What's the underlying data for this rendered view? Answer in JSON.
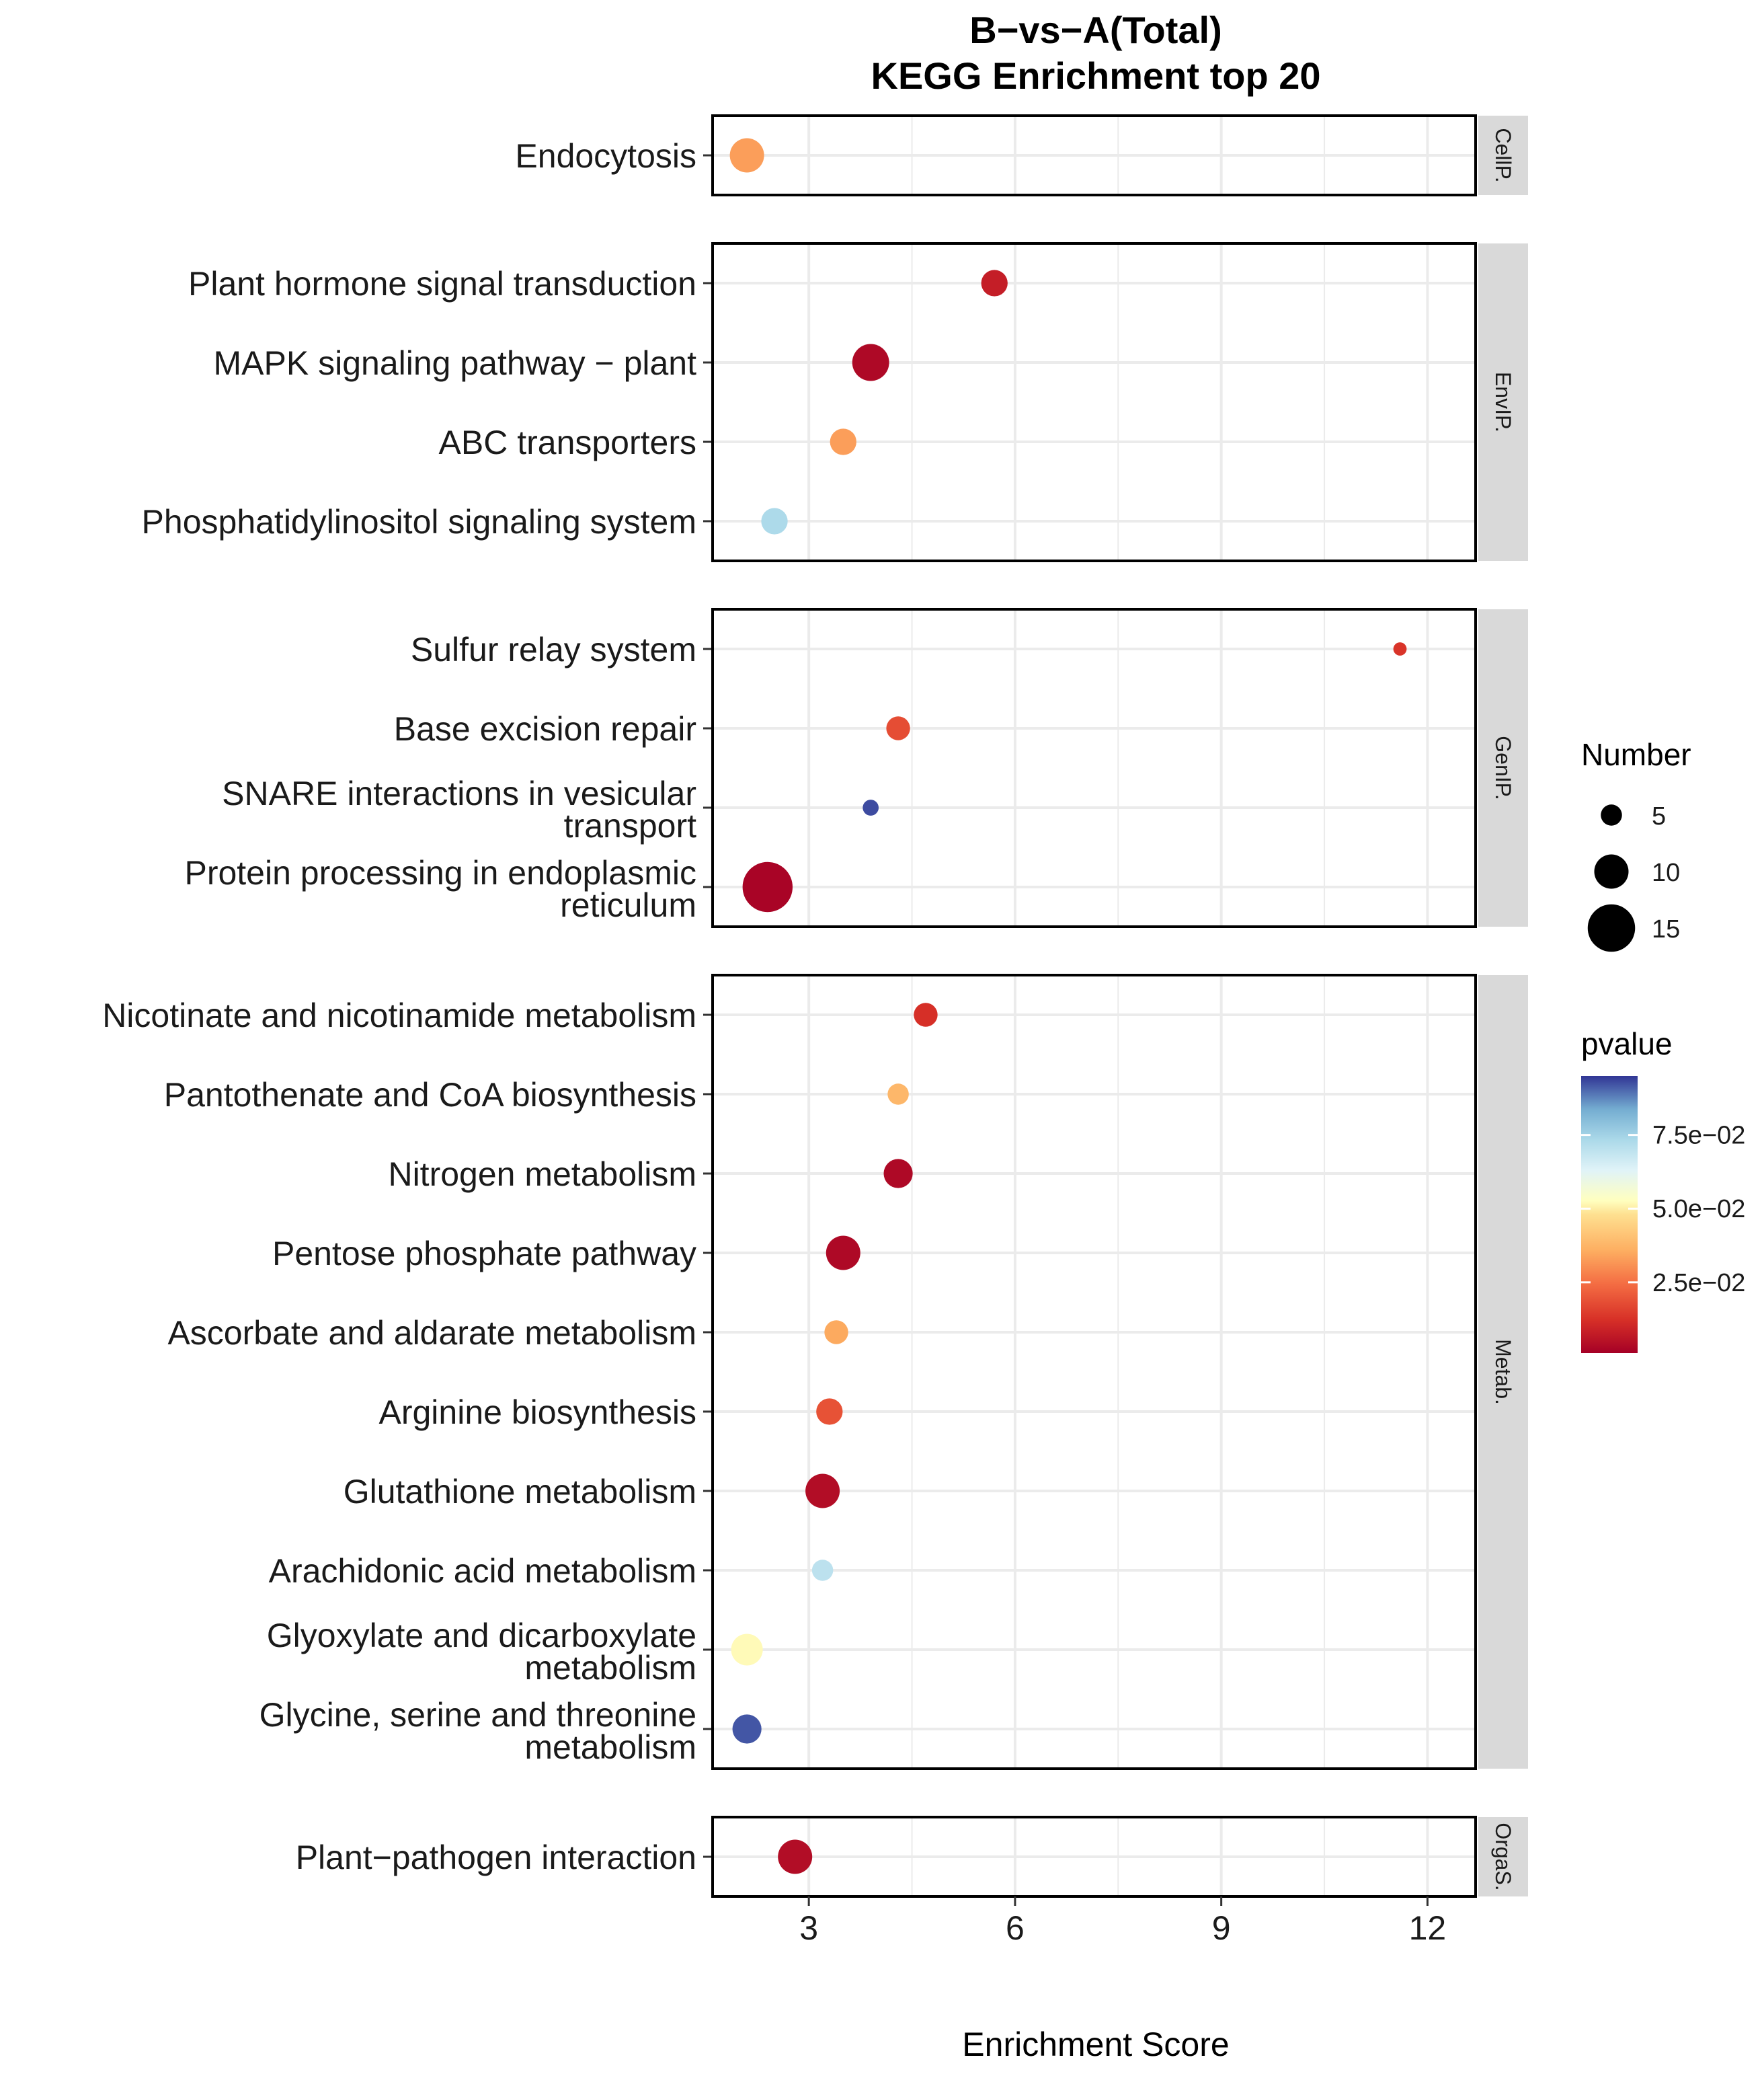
{
  "chart_data": {
    "type": "scatter",
    "title_line1": "B−vs−A(Total)",
    "title_line2": "KEGG Enrichment top 20",
    "xlabel": "Enrichment Score",
    "xlim": [
      1.6,
      12.7
    ],
    "xticks": [
      3,
      6,
      9,
      12
    ],
    "xtick_labels": [
      "3",
      "6",
      "9",
      "12"
    ],
    "grid": true,
    "size_legend": {
      "title": "Number",
      "entries": [
        {
          "value": 5,
          "label": "5"
        },
        {
          "value": 10,
          "label": "10"
        },
        {
          "value": 15,
          "label": "15"
        }
      ]
    },
    "color_legend": {
      "title": "pvalue",
      "min": 0.001,
      "max": 0.095,
      "ticks": [
        {
          "value": 0.025,
          "label": "2.5e−02"
        },
        {
          "value": 0.05,
          "label": "5.0e−02"
        },
        {
          "value": 0.075,
          "label": "7.5e−02"
        }
      ],
      "color_stops": [
        {
          "p": 0.0,
          "color": "#a50026"
        },
        {
          "p": 0.12,
          "color": "#d73027"
        },
        {
          "p": 0.25,
          "color": "#f46d43"
        },
        {
          "p": 0.37,
          "color": "#fdae61"
        },
        {
          "p": 0.5,
          "color": "#fee090"
        },
        {
          "p": 0.55,
          "color": "#ffffbf"
        },
        {
          "p": 0.66,
          "color": "#e0f3f8"
        },
        {
          "p": 0.77,
          "color": "#abd9e9"
        },
        {
          "p": 0.88,
          "color": "#74add1"
        },
        {
          "p": 1.0,
          "color": "#313695"
        }
      ]
    },
    "panels": [
      {
        "strip": "CellP.",
        "terms": [
          {
            "label": [
              "Endocytosis"
            ],
            "x": 2.1,
            "number": 10,
            "pvalue": 0.033
          }
        ]
      },
      {
        "strip": "EnvIP.",
        "terms": [
          {
            "label": [
              "Plant hormone signal transduction"
            ],
            "x": 5.7,
            "number": 7,
            "pvalue": 0.008
          },
          {
            "label": [
              "MAPK signaling pathway − plant"
            ],
            "x": 3.9,
            "number": 11,
            "pvalue": 0.003
          },
          {
            "label": [
              "ABC transporters"
            ],
            "x": 3.5,
            "number": 7,
            "pvalue": 0.033
          },
          {
            "label": [
              "Phosphatidylinositol signaling system"
            ],
            "x": 2.5,
            "number": 7,
            "pvalue": 0.073
          }
        ]
      },
      {
        "strip": "GenIP.",
        "terms": [
          {
            "label": [
              "Sulfur relay system"
            ],
            "x": 11.6,
            "number": 2,
            "pvalue": 0.013
          },
          {
            "label": [
              "Base excision repair"
            ],
            "x": 4.3,
            "number": 6,
            "pvalue": 0.018
          },
          {
            "label": [
              "SNARE interactions in vesicular",
              "transport"
            ],
            "x": 3.9,
            "number": 3,
            "pvalue": 0.093
          },
          {
            "label": [
              "Protein processing in endoplasmic",
              "reticulum"
            ],
            "x": 2.4,
            "number": 16,
            "pvalue": 0.002
          }
        ]
      },
      {
        "strip": "Metab.",
        "terms": [
          {
            "label": [
              "Nicotinate and nicotinamide metabolism"
            ],
            "x": 4.7,
            "number": 6,
            "pvalue": 0.012
          },
          {
            "label": [
              "Pantothenate and CoA biosynthesis"
            ],
            "x": 4.3,
            "number": 5,
            "pvalue": 0.038
          },
          {
            "label": [
              "Nitrogen metabolism"
            ],
            "x": 4.3,
            "number": 8,
            "pvalue": 0.003
          },
          {
            "label": [
              "Pentose phosphate pathway"
            ],
            "x": 3.5,
            "number": 10,
            "pvalue": 0.003
          },
          {
            "label": [
              "Ascorbate and aldarate metabolism"
            ],
            "x": 3.4,
            "number": 6,
            "pvalue": 0.035
          },
          {
            "label": [
              "Arginine biosynthesis"
            ],
            "x": 3.3,
            "number": 7,
            "pvalue": 0.019
          },
          {
            "label": [
              "Glutathione metabolism"
            ],
            "x": 3.2,
            "number": 10,
            "pvalue": 0.004
          },
          {
            "label": [
              "Arachidonic acid metabolism"
            ],
            "x": 3.2,
            "number": 5,
            "pvalue": 0.07
          },
          {
            "label": [
              "Glyoxylate and dicarboxylate",
              "metabolism"
            ],
            "x": 2.1,
            "number": 9,
            "pvalue": 0.052
          },
          {
            "label": [
              "Glycine, serine and threonine",
              "metabolism"
            ],
            "x": 2.1,
            "number": 8,
            "pvalue": 0.092
          }
        ]
      },
      {
        "strip": "OrgaS.",
        "terms": [
          {
            "label": [
              "Plant−pathogen interaction"
            ],
            "x": 2.8,
            "number": 10,
            "pvalue": 0.004
          }
        ]
      }
    ]
  }
}
